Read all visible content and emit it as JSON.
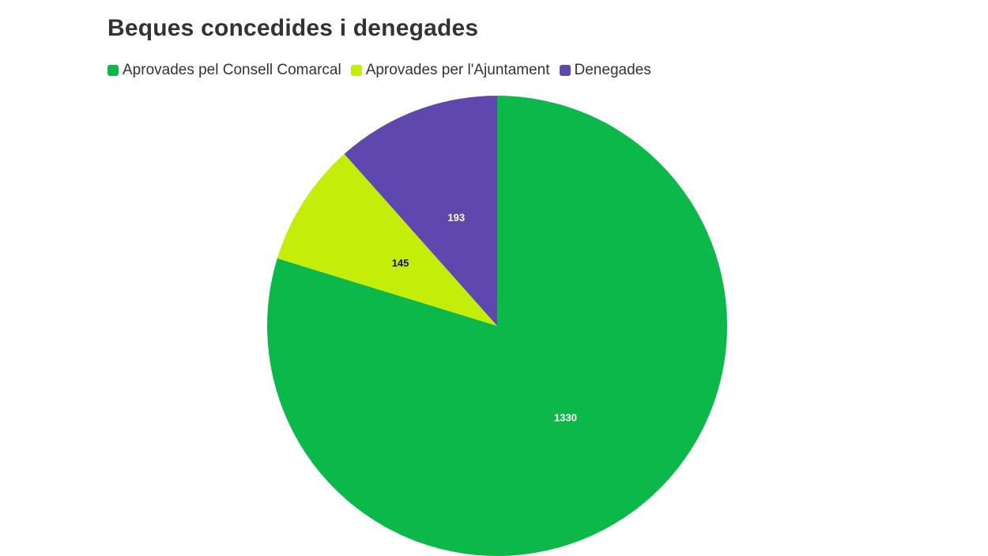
{
  "chart_data": {
    "type": "pie",
    "title": "Beques concedides i denegades",
    "legend_position": "top-left",
    "slices": [
      {
        "name": "Aprovades pel Consell Comarcal",
        "value": 1330,
        "color": "#0db84b",
        "label_color": "#ffffff"
      },
      {
        "name": "Aprovades per l'Ajuntament",
        "value": 145,
        "color": "#c5ed0a",
        "label_color": "#111111"
      },
      {
        "name": "Denegades",
        "value": 193,
        "color": "#5e48ad",
        "label_color": "#ffffff"
      }
    ]
  }
}
